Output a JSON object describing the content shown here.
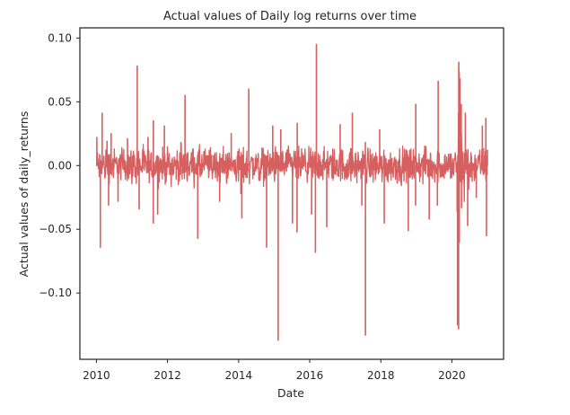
{
  "chart_data": {
    "type": "line",
    "title": "Actual values of Daily log returns over time",
    "xlabel": "Date",
    "ylabel": "Actual values of daily_returns",
    "color": "#d65f5f",
    "xlim": [
      "2009-07-15",
      "2021-06-15"
    ],
    "ylim": [
      -0.152,
      0.108
    ],
    "xticks": [
      "2010",
      "2012",
      "2014",
      "2016",
      "2018",
      "2020"
    ],
    "yticks": [
      "0.10",
      "0.05",
      "0.00",
      "−0.05",
      "−0.10"
    ],
    "grid": false,
    "legend": "none",
    "series": [
      {
        "x": [
          "2010-01-05",
          "2010-02-10",
          "2010-03-01",
          "2010-04-20",
          "2010-05-06",
          "2010-06-01",
          "2010-08-11",
          "2010-11-16",
          "2011-02-24",
          "2011-03-16",
          "2011-06-15",
          "2011-08-08",
          "2011-08-09",
          "2011-09-22",
          "2011-11-30",
          "2012-05-18",
          "2012-06-29",
          "2012-11-07",
          "2013-06-20",
          "2013-10-17",
          "2014-01-24",
          "2014-02-03",
          "2014-04-15",
          "2014-10-15",
          "2014-12-17",
          "2015-02-11",
          "2015-03-10",
          "2015-07-08",
          "2015-08-24",
          "2015-08-26",
          "2016-01-21",
          "2016-02-29",
          "2016-03-10",
          "2016-06-24",
          "2016-11-09",
          "2017-03-14",
          "2017-06-20",
          "2017-07-26",
          "2017-07-27",
          "2017-12-20",
          "2018-02-05",
          "2018-10-10",
          "2018-12-24",
          "2018-12-26",
          "2019-05-13",
          "2019-08-05",
          "2019-08-13",
          "2020-02-24",
          "2020-02-28",
          "2020-03-09",
          "2020-03-10",
          "2020-03-12",
          "2020-03-13",
          "2020-03-16",
          "2020-03-17",
          "2020-03-24",
          "2020-04-06",
          "2020-04-09",
          "2020-05-18",
          "2020-06-11",
          "2020-09-08",
          "2020-11-09",
          "2020-12-15",
          "2020-12-21",
          "2020-12-31"
        ],
        "y": [
          0.022,
          -0.064,
          0.041,
          0.019,
          -0.031,
          0.025,
          -0.028,
          0.021,
          0.078,
          -0.034,
          0.022,
          -0.045,
          0.035,
          -0.038,
          0.031,
          0.018,
          0.055,
          -0.057,
          -0.028,
          0.025,
          -0.022,
          -0.041,
          0.06,
          -0.064,
          0.031,
          -0.137,
          0.028,
          -0.045,
          -0.052,
          0.033,
          -0.038,
          -0.068,
          0.095,
          -0.048,
          0.032,
          0.041,
          -0.031,
          0.018,
          -0.133,
          0.028,
          -0.045,
          -0.051,
          -0.031,
          0.048,
          -0.042,
          -0.031,
          0.066,
          -0.036,
          -0.125,
          0.041,
          -0.128,
          0.081,
          0.075,
          0.073,
          -0.06,
          0.068,
          0.048,
          -0.033,
          0.041,
          -0.047,
          -0.025,
          0.031,
          0.037,
          -0.055,
          0.012
        ]
      }
    ]
  }
}
